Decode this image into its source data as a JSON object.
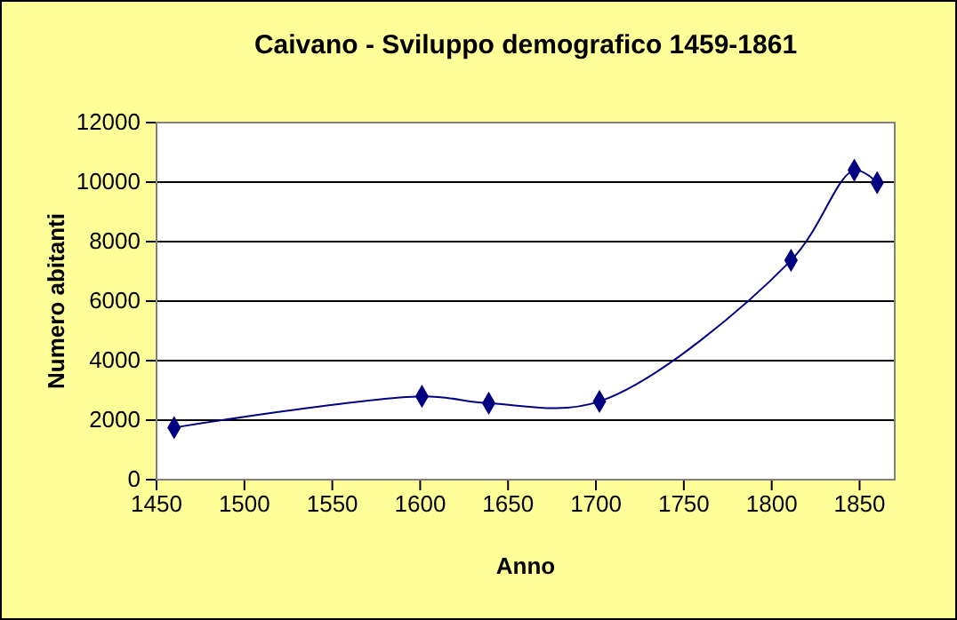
{
  "chart_data": {
    "type": "line",
    "title": "Caivano - Sviluppo demografico 1459-1861",
    "xlabel": "Anno",
    "ylabel": "Numero abitanti",
    "x": [
      1460,
      1601,
      1639,
      1702,
      1811,
      1847,
      1860
    ],
    "series": [
      {
        "color": "#000080",
        "values": [
          1750,
          2800,
          2570,
          2630,
          7370,
          10400,
          9980
        ]
      }
    ],
    "xlim": [
      1450,
      1870
    ],
    "xticks": [
      1450,
      1500,
      1550,
      1600,
      1650,
      1700,
      1750,
      1800,
      1850
    ],
    "ylim": [
      0,
      12000
    ],
    "yticks": [
      0,
      2000,
      4000,
      6000,
      8000,
      10000,
      12000
    ],
    "grid": "y",
    "marker": "diamond",
    "line_style": "solid"
  }
}
